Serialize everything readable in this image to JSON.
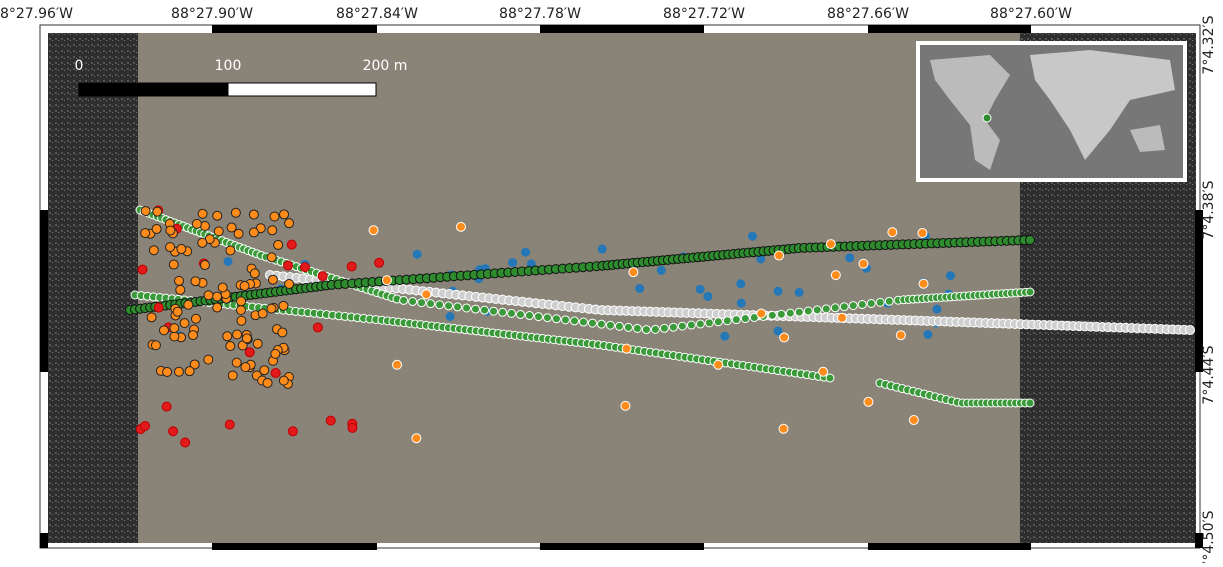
{
  "map": {
    "longitude_labels": [
      "88°27.96′W",
      "88°27.90′W",
      "88°27.84′W",
      "88°27.78′W",
      "88°27.72′W",
      "88°27.66′W",
      "88°27.60′W"
    ],
    "latitude_labels": [
      "7°4.32′S",
      "7°4.38′S",
      "7°4.44′S",
      "7°4.50′S"
    ],
    "scale_bar": [
      "0",
      "100",
      "200 m"
    ]
  }
}
